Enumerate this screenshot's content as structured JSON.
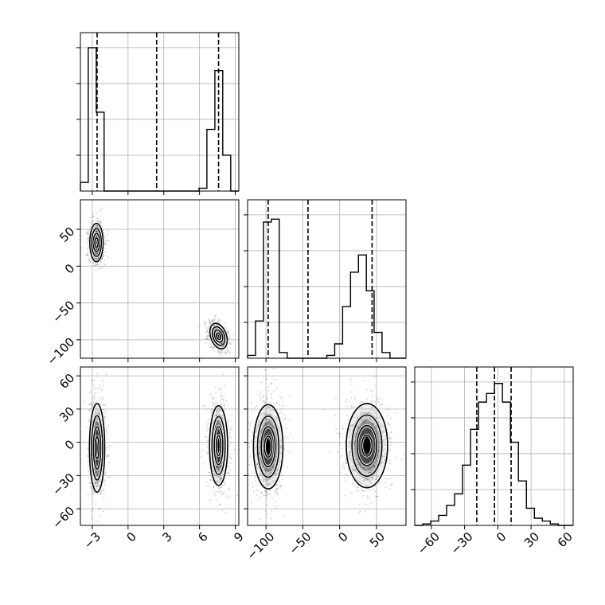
{
  "chart_data": {
    "type": "corner",
    "params": 3,
    "grid": true,
    "axes": [
      {
        "name": "",
        "range": [
          -4,
          9.3
        ],
        "ticks": [
          -3,
          0,
          3,
          6,
          9
        ]
      },
      {
        "name": "",
        "range": [
          -125,
          90
        ],
        "ticks": [
          -100,
          -50,
          0,
          50
        ]
      },
      {
        "name": "",
        "range": [
          -75,
          68
        ],
        "ticks": [
          -60,
          -30,
          0,
          30,
          60
        ]
      }
    ],
    "diagonal": [
      {
        "param": 0,
        "bins": [
          -4,
          -3.34,
          -2.67,
          -2.01,
          5.96,
          6.62,
          7.29,
          7.95,
          8.62,
          9.3
        ],
        "counts": [
          0.06,
          1.0,
          0.55,
          0.0,
          0.02,
          0.43,
          0.84,
          0.25,
          0.0
        ],
        "quantiles": [
          -2.6,
          2.4,
          7.6
        ]
      },
      {
        "param": 1,
        "bins": [
          -125,
          -114.25,
          -103.5,
          -92.75,
          -82,
          -71.25,
          -60.5,
          -49.75,
          -39,
          -28.25,
          -17.5,
          -6.75,
          4,
          14.75,
          25.5,
          36.25,
          46.75,
          57.5,
          68.25,
          79,
          90
        ],
        "counts": [
          0.02,
          0.26,
          0.95,
          0.97,
          0.04,
          0.0,
          0.0,
          0.0,
          0.0,
          0.0,
          0.02,
          0.1,
          0.36,
          0.6,
          0.72,
          0.47,
          0.18,
          0.04,
          0.0,
          0.0
        ],
        "quantiles": [
          -97,
          -43,
          44
        ]
      },
      {
        "param": 2,
        "bins": [
          -75,
          -67.8,
          -60.6,
          -53.4,
          -46.2,
          -39,
          -31.8,
          -24.6,
          -17.4,
          -10.2,
          -3,
          4.2,
          11.4,
          18.6,
          25.8,
          33,
          40.2,
          47.4,
          54.6,
          61.8,
          68
        ],
        "counts": [
          0.0,
          0.01,
          0.03,
          0.07,
          0.14,
          0.22,
          0.42,
          0.67,
          0.86,
          0.92,
          0.99,
          0.86,
          0.58,
          0.31,
          0.12,
          0.05,
          0.03,
          0.01,
          0.0,
          0.0
        ],
        "quantiles": [
          -19,
          -3,
          12
        ]
      }
    ],
    "pairs": [
      {
        "x": 0,
        "y": 1,
        "clusters": [
          {
            "cx": -2.65,
            "cy": 32,
            "sx": 0.28,
            "sy": 13,
            "rho": 0,
            "weight": 0.5
          },
          {
            "cx": 7.6,
            "cy": -95,
            "sx": 0.33,
            "sy": 9,
            "rho": -0.45,
            "weight": 0.5
          }
        ]
      },
      {
        "x": 0,
        "y": 2,
        "clusters": [
          {
            "cx": -2.6,
            "cy": -5,
            "sx": 0.32,
            "sy": 20,
            "rho": 0,
            "weight": 0.5
          },
          {
            "cx": 7.6,
            "cy": -3,
            "sx": 0.38,
            "sy": 18,
            "rho": 0,
            "weight": 0.5
          }
        ]
      },
      {
        "x": 1,
        "y": 2,
        "clusters": [
          {
            "cx": -97,
            "cy": -4,
            "sx": 10,
            "sy": 19,
            "rho": 0,
            "weight": 0.5
          },
          {
            "cx": 37,
            "cy": -3,
            "sx": 14,
            "sy": 19,
            "rho": 0,
            "weight": 0.5
          }
        ]
      }
    ]
  }
}
